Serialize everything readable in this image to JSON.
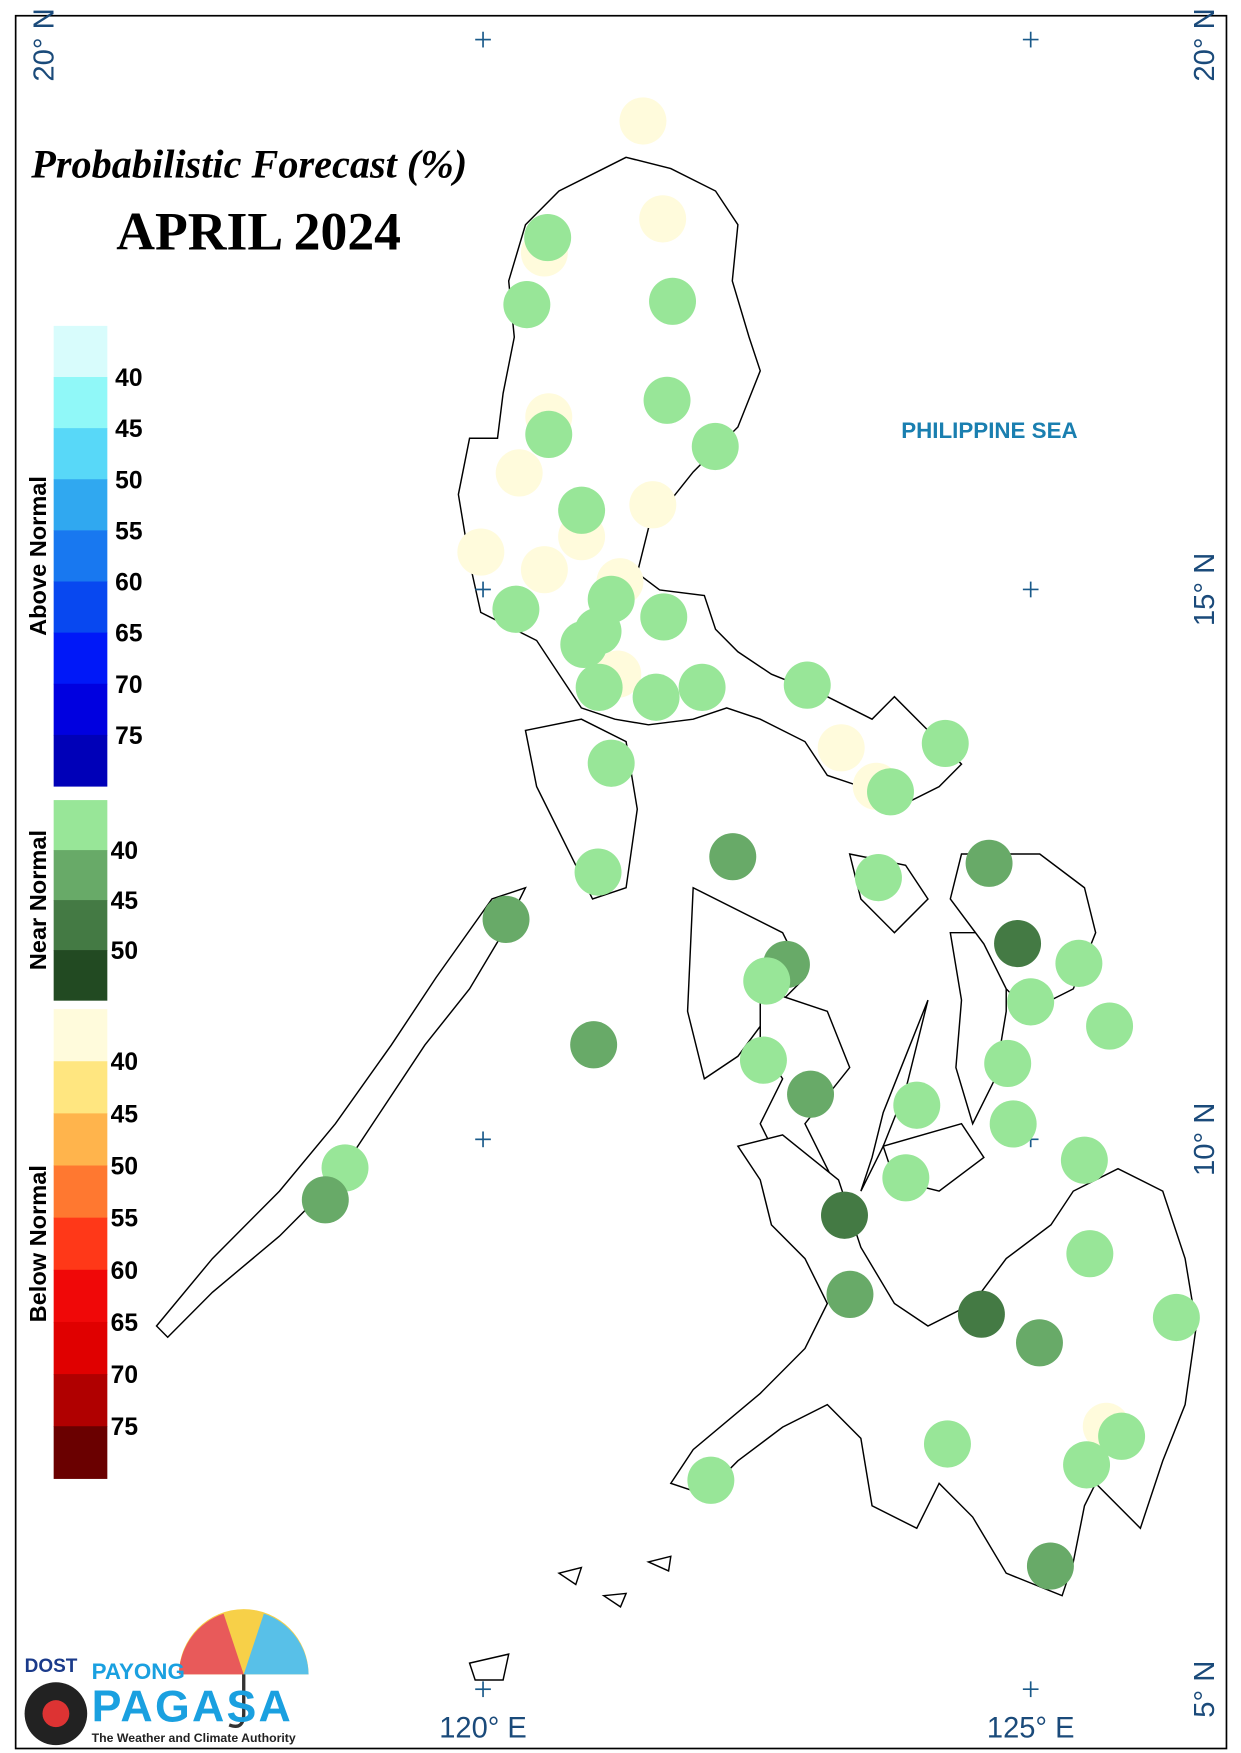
{
  "title": "Probabilistic Forecast (%)",
  "subtitle": "APRIL 2024",
  "sea_label": "PHILIPPINE SEA",
  "lonlim": [
    115.59,
    126.92
  ],
  "latlim": [
    4.42,
    20.36
  ],
  "lon_ticks": [
    {
      "value": 120,
      "label": "120° E"
    },
    {
      "value": 125,
      "label": "125° E"
    }
  ],
  "lat_ticks": [
    {
      "value": 20,
      "label": "20° N"
    },
    {
      "value": 15,
      "label": "15° N"
    },
    {
      "value": 10,
      "label": "10° N"
    },
    {
      "value": 5,
      "label": "5° N"
    }
  ],
  "legend": [
    {
      "title": "Above Normal",
      "colors": [
        "#d8fcfc",
        "#90f8f8",
        "#58d8f8",
        "#30a8f0",
        "#1878f0",
        "#0848f0",
        "#0018f8",
        "#0000e0",
        "#0000b8"
      ],
      "labels": [
        40,
        45,
        50,
        55,
        60,
        65,
        70,
        75
      ]
    },
    {
      "title": "Near Normal",
      "colors": [
        "#98e698",
        "#68aa68",
        "#447a44",
        "#224a22"
      ],
      "labels": [
        40,
        45,
        50
      ]
    },
    {
      "title": "Below Normal",
      "colors": [
        "#fffbdc",
        "#ffe680",
        "#ffb44c",
        "#ff7830",
        "#ff3818",
        "#f00808",
        "#e00000",
        "#b00000",
        "#6a0000"
      ],
      "labels": [
        40,
        45,
        50,
        55,
        60,
        65,
        70,
        75
      ]
    }
  ],
  "stations": [
    {
      "lon": 121.46,
      "lat": 19.26,
      "color": "#fffbdc"
    },
    {
      "lon": 121.64,
      "lat": 18.37,
      "color": "#fffbdc"
    },
    {
      "lon": 120.56,
      "lat": 18.06,
      "color": "#fffbdc"
    },
    {
      "lon": 120.6,
      "lat": 16.57,
      "color": "#fffbdc"
    },
    {
      "lon": 120.33,
      "lat": 16.06,
      "color": "#fffbdc"
    },
    {
      "lon": 121.55,
      "lat": 15.77,
      "color": "#fffbdc"
    },
    {
      "lon": 120.9,
      "lat": 15.48,
      "color": "#fffbdc"
    },
    {
      "lon": 119.98,
      "lat": 15.34,
      "color": "#fffbdc"
    },
    {
      "lon": 120.56,
      "lat": 15.18,
      "color": "#fffbdc"
    },
    {
      "lon": 121.25,
      "lat": 15.07,
      "color": "#fffbdc"
    },
    {
      "lon": 121.23,
      "lat": 14.23,
      "color": "#fffbdc"
    },
    {
      "lon": 123.27,
      "lat": 13.56,
      "color": "#fffbdc"
    },
    {
      "lon": 123.59,
      "lat": 13.21,
      "color": "#fffbdc"
    },
    {
      "lon": 125.69,
      "lat": 7.39,
      "color": "#fffbdc"
    },
    {
      "lon": 120.59,
      "lat": 18.2,
      "color": "#98e698"
    },
    {
      "lon": 120.4,
      "lat": 17.59,
      "color": "#98e698"
    },
    {
      "lon": 121.73,
      "lat": 17.62,
      "color": "#98e698"
    },
    {
      "lon": 121.68,
      "lat": 16.72,
      "color": "#98e698"
    },
    {
      "lon": 120.6,
      "lat": 16.41,
      "color": "#98e698"
    },
    {
      "lon": 122.12,
      "lat": 16.3,
      "color": "#98e698"
    },
    {
      "lon": 120.9,
      "lat": 15.72,
      "color": "#98e698"
    },
    {
      "lon": 121.17,
      "lat": 14.91,
      "color": "#98e698"
    },
    {
      "lon": 120.3,
      "lat": 14.82,
      "color": "#98e698"
    },
    {
      "lon": 121.65,
      "lat": 14.75,
      "color": "#98e698"
    },
    {
      "lon": 121.05,
      "lat": 14.62,
      "color": "#98e698"
    },
    {
      "lon": 120.92,
      "lat": 14.5,
      "color": "#98e698"
    },
    {
      "lon": 121.06,
      "lat": 14.11,
      "color": "#98e698"
    },
    {
      "lon": 121.58,
      "lat": 14.02,
      "color": "#98e698"
    },
    {
      "lon": 122.0,
      "lat": 14.11,
      "color": "#98e698"
    },
    {
      "lon": 122.96,
      "lat": 14.13,
      "color": "#98e698"
    },
    {
      "lon": 124.22,
      "lat": 13.6,
      "color": "#98e698"
    },
    {
      "lon": 123.72,
      "lat": 13.16,
      "color": "#98e698"
    },
    {
      "lon": 121.17,
      "lat": 13.42,
      "color": "#98e698"
    },
    {
      "lon": 122.28,
      "lat": 12.57,
      "color": "#68aa68"
    },
    {
      "lon": 121.05,
      "lat": 12.43,
      "color": "#98e698"
    },
    {
      "lon": 123.61,
      "lat": 12.38,
      "color": "#98e698"
    },
    {
      "lon": 124.62,
      "lat": 12.51,
      "color": "#68aa68"
    },
    {
      "lon": 120.21,
      "lat": 12.0,
      "color": "#68aa68"
    },
    {
      "lon": 124.88,
      "lat": 11.78,
      "color": "#447a44"
    },
    {
      "lon": 125.44,
      "lat": 11.6,
      "color": "#98e698"
    },
    {
      "lon": 122.77,
      "lat": 11.59,
      "color": "#68aa68"
    },
    {
      "lon": 122.59,
      "lat": 11.44,
      "color": "#98e698"
    },
    {
      "lon": 125.0,
      "lat": 11.25,
      "color": "#98e698"
    },
    {
      "lon": 125.72,
      "lat": 11.03,
      "color": "#98e698"
    },
    {
      "lon": 121.01,
      "lat": 10.86,
      "color": "#68aa68"
    },
    {
      "lon": 122.56,
      "lat": 10.72,
      "color": "#98e698"
    },
    {
      "lon": 124.79,
      "lat": 10.69,
      "color": "#98e698"
    },
    {
      "lon": 122.99,
      "lat": 10.41,
      "color": "#68aa68"
    },
    {
      "lon": 123.96,
      "lat": 10.31,
      "color": "#98e698"
    },
    {
      "lon": 124.84,
      "lat": 10.14,
      "color": "#98e698"
    },
    {
      "lon": 125.49,
      "lat": 9.81,
      "color": "#98e698"
    },
    {
      "lon": 118.74,
      "lat": 9.74,
      "color": "#98e698"
    },
    {
      "lon": 118.56,
      "lat": 9.45,
      "color": "#68aa68"
    },
    {
      "lon": 123.86,
      "lat": 9.65,
      "color": "#98e698"
    },
    {
      "lon": 123.3,
      "lat": 9.31,
      "color": "#447a44"
    },
    {
      "lon": 125.54,
      "lat": 8.96,
      "color": "#98e698"
    },
    {
      "lon": 123.35,
      "lat": 8.59,
      "color": "#68aa68"
    },
    {
      "lon": 124.55,
      "lat": 8.41,
      "color": "#447a44"
    },
    {
      "lon": 125.08,
      "lat": 8.15,
      "color": "#68aa68"
    },
    {
      "lon": 126.33,
      "lat": 8.38,
      "color": "#98e698"
    },
    {
      "lon": 124.24,
      "lat": 7.23,
      "color": "#98e698"
    },
    {
      "lon": 125.83,
      "lat": 7.3,
      "color": "#98e698"
    },
    {
      "lon": 125.51,
      "lat": 7.04,
      "color": "#98e698"
    },
    {
      "lon": 122.08,
      "lat": 6.9,
      "color": "#98e698"
    },
    {
      "lon": 125.18,
      "lat": 6.12,
      "color": "#68aa68"
    }
  ],
  "logo": {
    "agency": "DOST",
    "brand_top": "PAYONG",
    "brand": "PAGASA",
    "tagline": "The Weather and Climate Authority"
  }
}
